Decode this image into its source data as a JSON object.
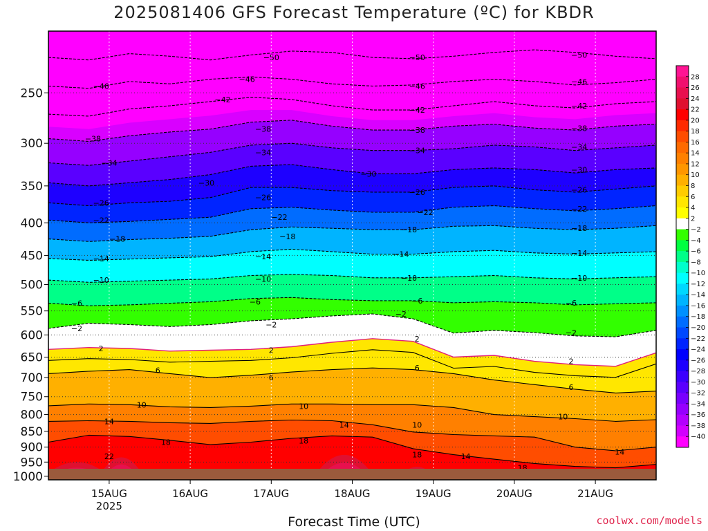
{
  "chart_data": {
    "type": "heatmap",
    "title": "2025081406 GFS Forecast Temperature (ºC) for KBDR",
    "xlabel": "Forecast Time (UTC)",
    "ylabel": "",
    "x_ticks": [
      {
        "label": "15AUG",
        "sub": "2025",
        "day": 15
      },
      {
        "label": "16AUG",
        "sub": "",
        "day": 16
      },
      {
        "label": "17AUG",
        "sub": "",
        "day": 17
      },
      {
        "label": "18AUG",
        "sub": "",
        "day": 18
      },
      {
        "label": "19AUG",
        "sub": "",
        "day": 19
      },
      {
        "label": "20AUG",
        "sub": "",
        "day": 20
      },
      {
        "label": "21AUG",
        "sub": "",
        "day": 21
      }
    ],
    "xlim": [
      "2025-08-14 06Z",
      "2025-08-21 18Z"
    ],
    "y_ticks": [
      250,
      300,
      350,
      400,
      450,
      500,
      550,
      600,
      650,
      700,
      750,
      800,
      850,
      900,
      950,
      1000
    ],
    "ylim": [
      1013,
      200
    ],
    "y_scale": "log",
    "y_units": "hPa",
    "colorbar": {
      "values": [
        28,
        26,
        24,
        22,
        20,
        18,
        16,
        14,
        12,
        10,
        8,
        6,
        4,
        2,
        -2,
        -4,
        -6,
        -8,
        -10,
        -12,
        -14,
        -16,
        -18,
        -20,
        -22,
        -24,
        -26,
        -28,
        -30,
        -32,
        -34,
        -36,
        -38,
        -40
      ],
      "colors": [
        "#ff1493",
        "#f0106e",
        "#e8104e",
        "#e01030",
        "#ff0000",
        "#ff2a00",
        "#ff4d00",
        "#ff6a00",
        "#ff8000",
        "#ff9600",
        "#ffb000",
        "#ffcc00",
        "#ffe600",
        "#ffff00",
        "#ffffff",
        "#33ff00",
        "#00ff40",
        "#00ff88",
        "#00ffcc",
        "#00ffff",
        "#00d8ff",
        "#00b4ff",
        "#0090ff",
        "#006cff",
        "#0048ff",
        "#0024ff",
        "#0000ff",
        "#1e00ff",
        "#3c00ff",
        "#5a00ff",
        "#7800ff",
        "#9600ff",
        "#b400ff",
        "#d200ff",
        "#ff00ff"
      ]
    },
    "contours": [
      {
        "value": -50,
        "p": [
          220,
          222,
          217,
          219,
          222,
          218,
          215,
          216,
          220,
          221,
          219,
          216,
          214,
          216,
          219,
          221
        ]
      },
      {
        "value": -46,
        "p": [
          244,
          246,
          240,
          242,
          238,
          236,
          238,
          242,
          244,
          243,
          240,
          238,
          240,
          243,
          241,
          238
        ]
      },
      {
        "value": -42,
        "p": [
          270,
          272,
          265,
          262,
          258,
          254,
          256,
          262,
          266,
          266,
          262,
          258,
          262,
          264,
          260,
          258
        ]
      },
      {
        "value": -38,
        "p": [
          295,
          298,
          292,
          288,
          285,
          278,
          276,
          282,
          286,
          286,
          282,
          280,
          284,
          286,
          282,
          280
        ]
      },
      {
        "value": -34,
        "p": [
          322,
          325,
          320,
          315,
          310,
          302,
          300,
          305,
          308,
          308,
          306,
          302,
          304,
          308,
          305,
          302
        ]
      },
      {
        "value": -30,
        "p": [
          346,
          350,
          346,
          342,
          336,
          326,
          324,
          330,
          335,
          335,
          330,
          328,
          330,
          334,
          330,
          328
        ]
      },
      {
        "value": -26,
        "p": [
          372,
          376,
          372,
          370,
          365,
          352,
          352,
          356,
          358,
          358,
          352,
          350,
          355,
          358,
          354,
          350
        ]
      },
      {
        "value": -22,
        "p": [
          396,
          400,
          398,
          395,
          392,
          380,
          378,
          382,
          385,
          385,
          378,
          376,
          380,
          383,
          380,
          376
        ]
      },
      {
        "value": -18,
        "p": [
          424,
          428,
          425,
          423,
          420,
          410,
          406,
          408,
          410,
          410,
          405,
          404,
          408,
          410,
          408,
          404
        ]
      },
      {
        "value": -14,
        "p": [
          455,
          458,
          456,
          454,
          452,
          444,
          440,
          444,
          448,
          448,
          444,
          442,
          446,
          448,
          446,
          444
        ]
      },
      {
        "value": -10,
        "p": [
          492,
          496,
          494,
          492,
          490,
          484,
          482,
          484,
          488,
          488,
          486,
          484,
          488,
          490,
          488,
          486
        ]
      },
      {
        "value": -6,
        "p": [
          535,
          540,
          538,
          535,
          532,
          526,
          524,
          528,
          530,
          530,
          534,
          532,
          534,
          538,
          536,
          534
        ]
      },
      {
        "value": -2,
        "p": [
          586,
          575,
          578,
          582,
          578,
          570,
          566,
          560,
          556,
          566,
          596,
          590,
          595,
          602,
          604,
          590
        ]
      },
      {
        "value": 2,
        "p": [
          632,
          628,
          630,
          636,
          634,
          632,
          626,
          616,
          608,
          614,
          650,
          646,
          660,
          668,
          672,
          640
        ]
      },
      {
        "value": 6,
        "p": [
          690,
          684,
          680,
          690,
          700,
          694,
          686,
          680,
          676,
          680,
          690,
          706,
          718,
          730,
          740,
          735
        ]
      },
      {
        "value": 10,
        "p": [
          775,
          770,
          772,
          778,
          780,
          776,
          770,
          770,
          772,
          772,
          780,
          800,
          806,
          812,
          820,
          815
        ]
      },
      {
        "value": 14,
        "p": [
          820,
          818,
          820,
          824,
          826,
          820,
          816,
          818,
          830,
          852,
          860,
          864,
          868,
          900,
          912,
          900
        ]
      },
      {
        "value": 18,
        "p": [
          884,
          862,
          866,
          878,
          892,
          884,
          872,
          864,
          868,
          905,
          925,
          940,
          955,
          965,
          970,
          958
        ]
      }
    ],
    "contour_labels": [
      {
        "value": -50,
        "day": 17.0,
        "p": 220
      },
      {
        "value": -50,
        "day": 18.8,
        "p": 220
      },
      {
        "value": -50,
        "day": 20.8,
        "p": 218
      },
      {
        "value": -46,
        "day": 14.9,
        "p": 244
      },
      {
        "value": -46,
        "day": 16.7,
        "p": 238
      },
      {
        "value": -46,
        "day": 18.8,
        "p": 244
      },
      {
        "value": -46,
        "day": 20.8,
        "p": 240
      },
      {
        "value": -42,
        "day": 16.4,
        "p": 256
      },
      {
        "value": -42,
        "day": 18.8,
        "p": 266
      },
      {
        "value": -42,
        "day": 20.8,
        "p": 262
      },
      {
        "value": -38,
        "day": 14.8,
        "p": 295
      },
      {
        "value": -38,
        "day": 16.9,
        "p": 285
      },
      {
        "value": -38,
        "day": 18.8,
        "p": 286
      },
      {
        "value": -38,
        "day": 20.8,
        "p": 284
      },
      {
        "value": -34,
        "day": 15.0,
        "p": 322
      },
      {
        "value": -34,
        "day": 16.9,
        "p": 310
      },
      {
        "value": -34,
        "day": 18.8,
        "p": 308
      },
      {
        "value": -34,
        "day": 20.8,
        "p": 304
      },
      {
        "value": -30,
        "day": 16.2,
        "p": 346
      },
      {
        "value": -30,
        "day": 18.2,
        "p": 335
      },
      {
        "value": -30,
        "day": 20.8,
        "p": 330
      },
      {
        "value": -26,
        "day": 14.9,
        "p": 372
      },
      {
        "value": -26,
        "day": 16.9,
        "p": 365
      },
      {
        "value": -26,
        "day": 18.8,
        "p": 358
      },
      {
        "value": -26,
        "day": 20.8,
        "p": 355
      },
      {
        "value": -22,
        "day": 14.9,
        "p": 396
      },
      {
        "value": -22,
        "day": 17.1,
        "p": 392
      },
      {
        "value": -22,
        "day": 18.9,
        "p": 385
      },
      {
        "value": -22,
        "day": 20.8,
        "p": 380
      },
      {
        "value": -18,
        "day": 15.1,
        "p": 424
      },
      {
        "value": -18,
        "day": 17.2,
        "p": 420
      },
      {
        "value": -18,
        "day": 18.7,
        "p": 410
      },
      {
        "value": -18,
        "day": 20.8,
        "p": 408
      },
      {
        "value": -14,
        "day": 14.9,
        "p": 455
      },
      {
        "value": -14,
        "day": 16.9,
        "p": 452
      },
      {
        "value": -14,
        "day": 18.6,
        "p": 448
      },
      {
        "value": -14,
        "day": 20.8,
        "p": 446
      },
      {
        "value": -10,
        "day": 14.9,
        "p": 492
      },
      {
        "value": -10,
        "day": 16.9,
        "p": 490
      },
      {
        "value": -10,
        "day": 18.7,
        "p": 488
      },
      {
        "value": -10,
        "day": 20.8,
        "p": 488
      },
      {
        "value": -6,
        "day": 14.6,
        "p": 535
      },
      {
        "value": -6,
        "day": 16.8,
        "p": 532
      },
      {
        "value": -6,
        "day": 18.8,
        "p": 530
      },
      {
        "value": -6,
        "day": 20.7,
        "p": 534
      },
      {
        "value": -2,
        "day": 14.6,
        "p": 586
      },
      {
        "value": -2,
        "day": 17.0,
        "p": 578
      },
      {
        "value": -2,
        "day": 18.6,
        "p": 556
      },
      {
        "value": -2,
        "day": 20.7,
        "p": 595
      },
      {
        "value": 2,
        "day": 14.9,
        "p": 630
      },
      {
        "value": 2,
        "day": 17.0,
        "p": 634
      },
      {
        "value": 2,
        "day": 18.8,
        "p": 608
      },
      {
        "value": 2,
        "day": 20.7,
        "p": 660
      },
      {
        "value": 6,
        "day": 15.6,
        "p": 682
      },
      {
        "value": 6,
        "day": 17.0,
        "p": 700
      },
      {
        "value": 6,
        "day": 18.8,
        "p": 676
      },
      {
        "value": 6,
        "day": 20.7,
        "p": 725
      },
      {
        "value": 10,
        "day": 15.4,
        "p": 772
      },
      {
        "value": 10,
        "day": 17.4,
        "p": 776
      },
      {
        "value": 10,
        "day": 18.8,
        "p": 830
      },
      {
        "value": 10,
        "day": 20.6,
        "p": 806
      },
      {
        "value": 14,
        "day": 15.0,
        "p": 820
      },
      {
        "value": 14,
        "day": 17.9,
        "p": 830
      },
      {
        "value": 14,
        "day": 19.4,
        "p": 930
      },
      {
        "value": 14,
        "day": 21.3,
        "p": 915
      },
      {
        "value": 18,
        "day": 15.7,
        "p": 884
      },
      {
        "value": 18,
        "day": 17.4,
        "p": 880
      },
      {
        "value": 18,
        "day": 18.8,
        "p": 925
      },
      {
        "value": 18,
        "day": 20.1,
        "p": 970
      },
      {
        "value": 22,
        "day": 15.0,
        "p": 930
      }
    ],
    "warm_cores": [
      {
        "day_center": 14.6,
        "day_halfwidth": 0.45,
        "p_top": 935
      },
      {
        "day_center": 15.15,
        "day_halfwidth": 0.3,
        "p_top": 915
      },
      {
        "day_center": 17.9,
        "day_halfwidth": 0.4,
        "p_top": 905
      },
      {
        "day_center": 18.8,
        "day_halfwidth": 0.25,
        "p_top": 955
      },
      {
        "day_center": 21.1,
        "day_halfwidth": 0.5,
        "p_top": 975
      }
    ]
  },
  "watermark": "coolwx.com/models"
}
